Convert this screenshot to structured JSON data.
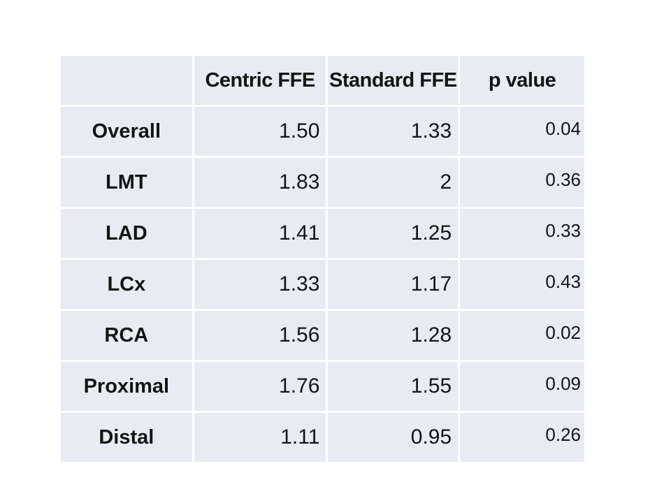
{
  "chart_data": {
    "type": "table",
    "columns": [
      "",
      "Centric FFE",
      "Standard FFE",
      "p value"
    ],
    "rows": [
      {
        "label": "Overall",
        "values": [
          "1.50",
          "1.33",
          "0.04"
        ]
      },
      {
        "label": "LMT",
        "values": [
          "1.83",
          "2",
          "0.36"
        ]
      },
      {
        "label": "LAD",
        "values": [
          "1.41",
          "1.25",
          "0.33"
        ]
      },
      {
        "label": "LCx",
        "values": [
          "1.33",
          "1.17",
          "0.43"
        ]
      },
      {
        "label": "RCA",
        "values": [
          "1.56",
          "1.28",
          "0.02"
        ]
      },
      {
        "label": "Proximal",
        "values": [
          "1.76",
          "1.55",
          "0.09"
        ]
      },
      {
        "label": "Distal",
        "values": [
          "1.11",
          "0.95",
          "0.26"
        ]
      }
    ],
    "layout_hints": {
      "header_row": true,
      "gridlines": "white",
      "value_alignment": "right",
      "label_alignment": "center"
    }
  },
  "colors": {
    "cell_fill": "#E8EBF2",
    "gridline": "#FFFFFF",
    "text": "#141414",
    "background": "#FFFFFF"
  }
}
